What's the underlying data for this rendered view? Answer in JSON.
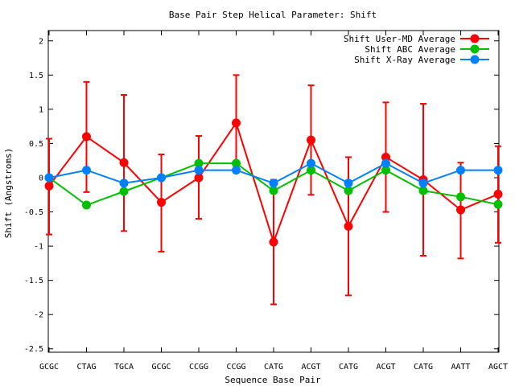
{
  "chart_data": {
    "type": "line",
    "title": "Base Pair Step Helical Parameter: Shift",
    "xlabel": "Sequence Base Pair",
    "ylabel": "Shift (Angstroms)",
    "categories": [
      "GCGC",
      "CTAG",
      "TGCA",
      "GCGC",
      "CCGG",
      "CCGG",
      "CATG",
      "ACGT",
      "CATG",
      "ACGT",
      "CATG",
      "AATT",
      "AGCT"
    ],
    "ylim": [
      -2.55,
      2.15
    ],
    "yticks": [
      -2.5,
      -2,
      -1.5,
      -1,
      -0.5,
      0,
      0.5,
      1,
      1.5,
      2
    ],
    "ytick_labels": [
      "-2.5",
      "-2",
      "-1.5",
      "-1",
      "-0.5",
      "0",
      "0.5",
      "1",
      "1.5",
      "2"
    ],
    "grid": false,
    "legend_position": "top-right",
    "series": [
      {
        "name": "Shift User-MD Average",
        "color": "#ff0000",
        "values": [
          -0.12,
          0.6,
          0.22,
          -0.36,
          0.0,
          0.8,
          -0.94,
          0.55,
          -0.71,
          0.3,
          -0.03,
          -0.47,
          -0.24
        ],
        "err_low": [
          -0.83,
          -0.21,
          -0.78,
          -1.08,
          -0.6,
          0.1,
          -1.85,
          -0.25,
          -1.72,
          -0.5,
          -1.14,
          -1.18,
          -0.95
        ],
        "err_high": [
          0.57,
          1.4,
          1.21,
          0.34,
          0.61,
          1.5,
          -0.03,
          1.35,
          0.3,
          1.1,
          1.08,
          0.22,
          0.46
        ]
      },
      {
        "name": "Shift ABC Average",
        "color": "#00c000",
        "values": [
          0.0,
          -0.4,
          -0.2,
          0.0,
          0.21,
          0.21,
          -0.19,
          0.11,
          -0.19,
          0.11,
          -0.19,
          -0.28,
          -0.39
        ]
      },
      {
        "name": "Shift X-Ray Average",
        "color": "#0080ff",
        "values": [
          0.0,
          0.11,
          -0.08,
          0.0,
          0.11,
          0.11,
          -0.08,
          0.21,
          -0.08,
          0.21,
          -0.08,
          0.11,
          0.11
        ]
      }
    ]
  }
}
